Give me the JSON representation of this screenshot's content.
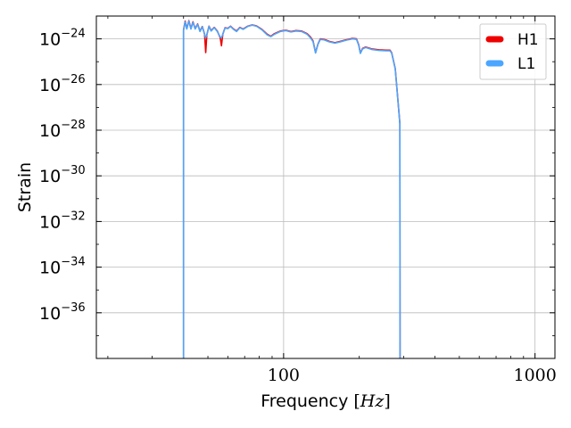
{
  "chart_data": {
    "type": "line",
    "xlabel": "Frequency",
    "xunit": "Hz",
    "ylabel": "Strain",
    "x_scale": "log",
    "y_scale": "log",
    "xlim": [
      18,
      1200
    ],
    "ylim": [
      1e-38,
      1e-23
    ],
    "x_ticks": [
      {
        "value": 100,
        "label": "100"
      },
      {
        "value": 1000,
        "label": "1000"
      }
    ],
    "y_ticks": [
      {
        "exp": -24,
        "base": "10",
        "sup": "−24"
      },
      {
        "exp": -26,
        "base": "10",
        "sup": "−26"
      },
      {
        "exp": -28,
        "base": "10",
        "sup": "−28"
      },
      {
        "exp": -30,
        "base": "10",
        "sup": "−30"
      },
      {
        "exp": -32,
        "base": "10",
        "sup": "−32"
      },
      {
        "exp": -34,
        "base": "10",
        "sup": "−34"
      },
      {
        "exp": -36,
        "base": "10",
        "sup": "−36"
      }
    ],
    "grid": true,
    "legend_position": "top-right",
    "series": [
      {
        "name": "H1",
        "color": "#ee0000",
        "points": [
          [
            40,
            1e-38
          ],
          [
            40,
            2.5e-24
          ],
          [
            40.6,
            6e-24
          ],
          [
            41.2,
            2.8e-24
          ],
          [
            42,
            6.3e-24
          ],
          [
            42.8,
            2.8e-24
          ],
          [
            43.6,
            5.6e-24
          ],
          [
            44.5,
            2.8e-24
          ],
          [
            45.5,
            4.5e-24
          ],
          [
            46.5,
            2.2e-24
          ],
          [
            47.5,
            3.5e-24
          ],
          [
            48.5,
            1.6e-24
          ],
          [
            49.0,
            2.5e-25
          ],
          [
            49.5,
            1.5e-24
          ],
          [
            50.5,
            3.6e-24
          ],
          [
            51.5,
            2.3e-24
          ],
          [
            53,
            3.2e-24
          ],
          [
            54.5,
            2.2e-24
          ],
          [
            56,
            1.1e-24
          ],
          [
            56.6,
            5e-25
          ],
          [
            57.3,
            1.6e-24
          ],
          [
            58.5,
            3.1e-24
          ],
          [
            60,
            2.9e-24
          ],
          [
            61.5,
            3.6e-24
          ],
          [
            63,
            2.8e-24
          ],
          [
            65,
            2.2e-24
          ],
          [
            67,
            3.2e-24
          ],
          [
            69,
            2.7e-24
          ],
          [
            72,
            3.6e-24
          ],
          [
            75,
            4.1e-24
          ],
          [
            78,
            3.7e-24
          ],
          [
            82,
            2.6e-24
          ],
          [
            86,
            1.6e-24
          ],
          [
            89,
            1.3e-24
          ],
          [
            92,
            1.7e-24
          ],
          [
            97,
            2.2e-24
          ],
          [
            102,
            2.4e-24
          ],
          [
            107,
            2.1e-24
          ],
          [
            112,
            2.3e-24
          ],
          [
            118,
            2.2e-24
          ],
          [
            124,
            1.7e-24
          ],
          [
            128,
            1.2e-24
          ],
          [
            131,
            8e-25
          ],
          [
            134,
            2.5e-25
          ],
          [
            137,
            6e-25
          ],
          [
            140,
            1e-24
          ],
          [
            145,
            9.5e-25
          ],
          [
            152,
            7.8e-25
          ],
          [
            160,
            6.8e-25
          ],
          [
            168,
            7.8e-25
          ],
          [
            178,
            9.2e-25
          ],
          [
            188,
            1.05e-24
          ],
          [
            195,
            1e-24
          ],
          [
            199,
            5.5e-25
          ],
          [
            202,
            2.4e-25
          ],
          [
            206,
            3.8e-25
          ],
          [
            212,
            4.4e-25
          ],
          [
            225,
            3.6e-25
          ],
          [
            240,
            3.3e-25
          ],
          [
            256,
            3.2e-25
          ],
          [
            265,
            3.2e-25
          ],
          [
            269,
            2.5e-25
          ],
          [
            278,
            5e-26
          ],
          [
            288,
            5e-28
          ],
          [
            290,
            2e-28
          ],
          [
            290.5,
            1e-38
          ]
        ]
      },
      {
        "name": "L1",
        "color": "#4ba6ff",
        "points": [
          [
            40,
            1e-38
          ],
          [
            40,
            2.4e-24
          ],
          [
            40.6,
            5.6e-24
          ],
          [
            41.2,
            2.7e-24
          ],
          [
            42,
            6e-24
          ],
          [
            42.8,
            2.7e-24
          ],
          [
            43.6,
            5.3e-24
          ],
          [
            44.5,
            2.7e-24
          ],
          [
            45.5,
            4.3e-24
          ],
          [
            46.5,
            2.1e-24
          ],
          [
            47.5,
            3.4e-24
          ],
          [
            48.5,
            1.6e-24
          ],
          [
            49.0,
            1.1e-24
          ],
          [
            49.5,
            1.5e-24
          ],
          [
            50.5,
            3.5e-24
          ],
          [
            51.5,
            2.2e-24
          ],
          [
            53,
            3.1e-24
          ],
          [
            54.5,
            2.1e-24
          ],
          [
            56,
            1.2e-24
          ],
          [
            56.6,
            1.1e-24
          ],
          [
            57.3,
            1.6e-24
          ],
          [
            58.5,
            3e-24
          ],
          [
            60,
            2.8e-24
          ],
          [
            61.5,
            3.5e-24
          ],
          [
            63,
            2.7e-24
          ],
          [
            65,
            2.1e-24
          ],
          [
            67,
            3.1e-24
          ],
          [
            69,
            2.6e-24
          ],
          [
            72,
            3.5e-24
          ],
          [
            75,
            4e-24
          ],
          [
            78,
            3.6e-24
          ],
          [
            82,
            2.5e-24
          ],
          [
            86,
            1.5e-24
          ],
          [
            89,
            1.25e-24
          ],
          [
            92,
            1.6e-24
          ],
          [
            97,
            2.1e-24
          ],
          [
            102,
            2.3e-24
          ],
          [
            107,
            2e-24
          ],
          [
            112,
            2.2e-24
          ],
          [
            118,
            2.1e-24
          ],
          [
            124,
            1.6e-24
          ],
          [
            128,
            1.1e-24
          ],
          [
            131,
            7.5e-25
          ],
          [
            134,
            2.4e-25
          ],
          [
            137,
            5.8e-25
          ],
          [
            140,
            9.5e-25
          ],
          [
            145,
            9e-25
          ],
          [
            152,
            7.4e-25
          ],
          [
            160,
            6.5e-25
          ],
          [
            168,
            7.4e-25
          ],
          [
            178,
            8.8e-25
          ],
          [
            188,
            1e-24
          ],
          [
            195,
            9.5e-25
          ],
          [
            199,
            5.2e-25
          ],
          [
            202,
            2.3e-25
          ],
          [
            206,
            3.6e-25
          ],
          [
            212,
            4.2e-25
          ],
          [
            225,
            3.4e-25
          ],
          [
            240,
            3.1e-25
          ],
          [
            256,
            3e-25
          ],
          [
            265,
            3e-25
          ],
          [
            269,
            2.4e-25
          ],
          [
            278,
            4.8e-26
          ],
          [
            288,
            4.8e-28
          ],
          [
            290,
            1.9e-28
          ],
          [
            290.5,
            1e-38
          ]
        ]
      }
    ]
  }
}
